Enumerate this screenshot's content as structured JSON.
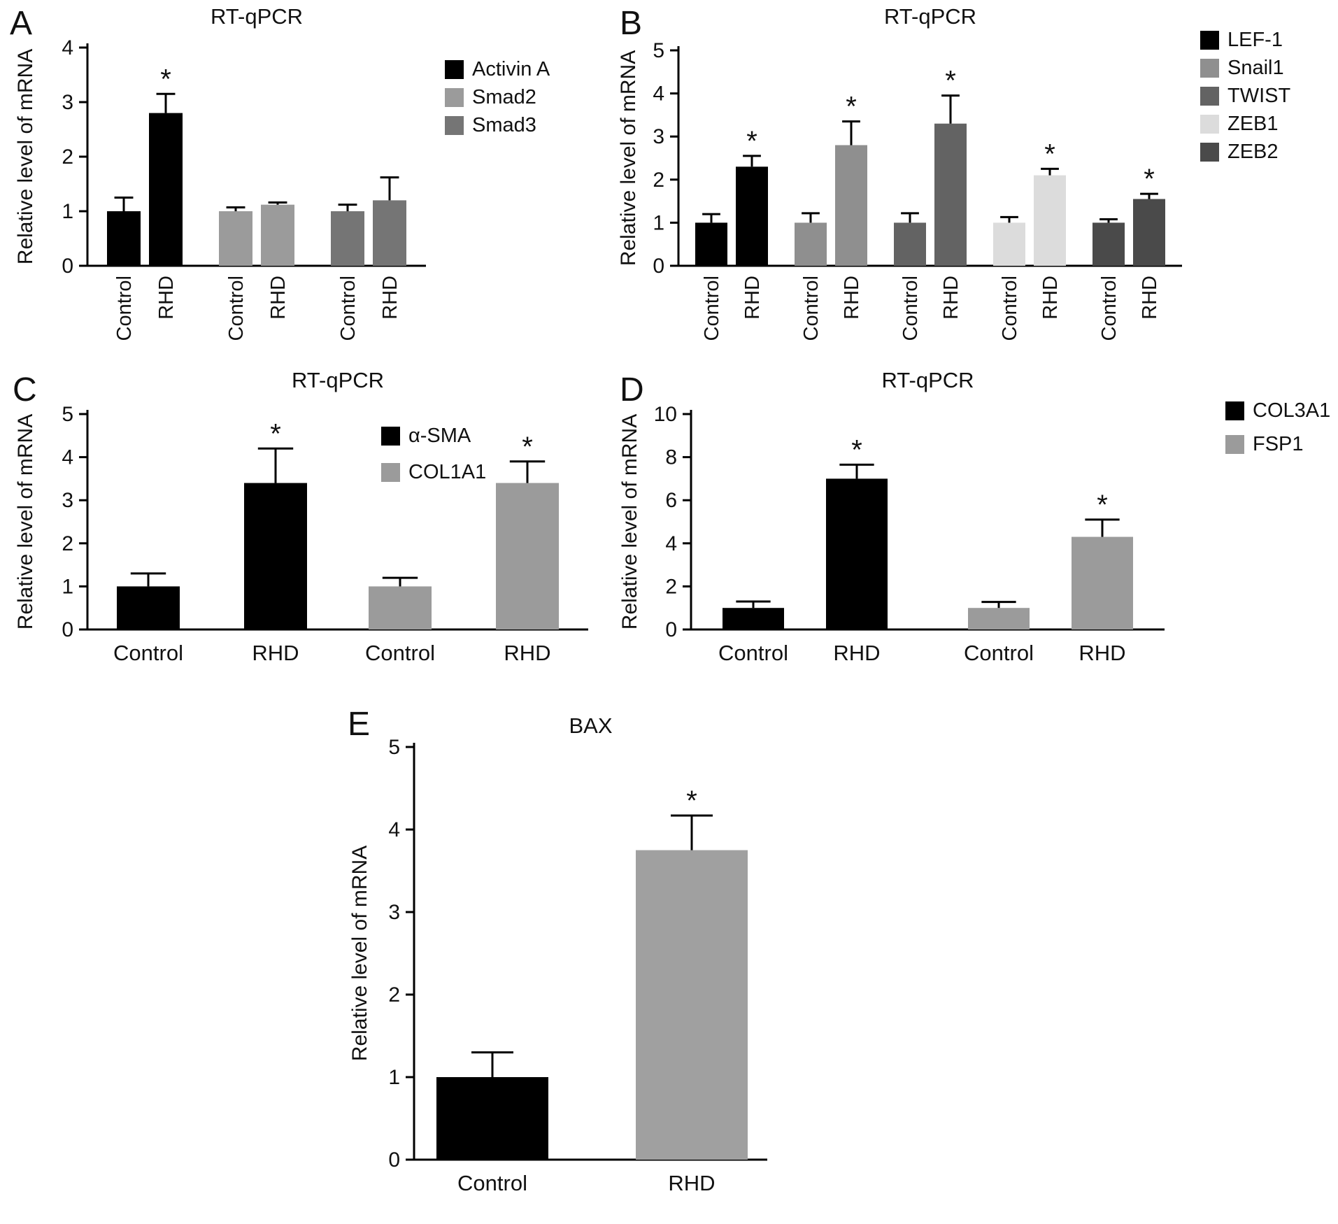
{
  "figure": {
    "background": "#ffffff",
    "bar_edge_color": "#000000",
    "significance_marker": "*"
  },
  "chart_data": [
    {
      "id": "A",
      "type": "bar",
      "panel_letter": "A",
      "title": "RT-qPCR",
      "ylabel": "Relative level of mRNA",
      "xlabel": "",
      "ylim": [
        0,
        4
      ],
      "yticks": [
        0,
        1,
        2,
        3,
        4
      ],
      "grid": false,
      "legend_position": "right",
      "legend": [
        {
          "label": "Activin A",
          "color": "#000000"
        },
        {
          "label": "Smad2",
          "color": "#9b9b9b"
        },
        {
          "label": "Smad3",
          "color": "#757575"
        }
      ],
      "groups": [
        {
          "name": "Activin A",
          "color": "#000000",
          "bars": [
            {
              "label": "Control",
              "value": 1.0,
              "error": 0.25,
              "sig": false
            },
            {
              "label": "RHD",
              "value": 2.8,
              "error": 0.35,
              "sig": true
            }
          ]
        },
        {
          "name": "Smad2",
          "color": "#9b9b9b",
          "bars": [
            {
              "label": "Control",
              "value": 1.0,
              "error": 0.07,
              "sig": false
            },
            {
              "label": "RHD",
              "value": 1.12,
              "error": 0.04,
              "sig": false
            }
          ]
        },
        {
          "name": "Smad3",
          "color": "#757575",
          "bars": [
            {
              "label": "Control",
              "value": 1.0,
              "error": 0.12,
              "sig": false
            },
            {
              "label": "RHD",
              "value": 1.2,
              "error": 0.42,
              "sig": false
            }
          ]
        }
      ]
    },
    {
      "id": "B",
      "type": "bar",
      "panel_letter": "B",
      "title": "RT-qPCR",
      "ylabel": "Relative level of mRNA",
      "xlabel": "",
      "ylim": [
        0,
        5
      ],
      "yticks": [
        0,
        1,
        2,
        3,
        4,
        5
      ],
      "grid": false,
      "legend_position": "right",
      "legend": [
        {
          "label": "LEF-1",
          "color": "#000000"
        },
        {
          "label": "Snail1",
          "color": "#8f8f8f"
        },
        {
          "label": "TWIST",
          "color": "#636363"
        },
        {
          "label": "ZEB1",
          "color": "#dcdcdc"
        },
        {
          "label": "ZEB2",
          "color": "#4a4a4a"
        }
      ],
      "groups": [
        {
          "name": "LEF-1",
          "color": "#000000",
          "bars": [
            {
              "label": "Control",
              "value": 1.0,
              "error": 0.2,
              "sig": false
            },
            {
              "label": "RHD",
              "value": 2.3,
              "error": 0.25,
              "sig": true
            }
          ]
        },
        {
          "name": "Snail1",
          "color": "#8f8f8f",
          "bars": [
            {
              "label": "Control",
              "value": 1.0,
              "error": 0.22,
              "sig": false
            },
            {
              "label": "RHD",
              "value": 2.8,
              "error": 0.55,
              "sig": true
            }
          ]
        },
        {
          "name": "TWIST",
          "color": "#636363",
          "bars": [
            {
              "label": "Control",
              "value": 1.0,
              "error": 0.22,
              "sig": false
            },
            {
              "label": "RHD",
              "value": 3.3,
              "error": 0.65,
              "sig": true
            }
          ]
        },
        {
          "name": "ZEB1",
          "color": "#dcdcdc",
          "bars": [
            {
              "label": "Control",
              "value": 1.0,
              "error": 0.13,
              "sig": false
            },
            {
              "label": "RHD",
              "value": 2.1,
              "error": 0.15,
              "sig": true
            }
          ]
        },
        {
          "name": "ZEB2",
          "color": "#4a4a4a",
          "bars": [
            {
              "label": "Control",
              "value": 1.0,
              "error": 0.08,
              "sig": false
            },
            {
              "label": "RHD",
              "value": 1.55,
              "error": 0.12,
              "sig": true
            }
          ]
        }
      ]
    },
    {
      "id": "C",
      "type": "bar",
      "panel_letter": "C",
      "title": "RT-qPCR",
      "ylabel": "Relative level of mRNA",
      "xlabel": "",
      "ylim": [
        0,
        5
      ],
      "yticks": [
        0,
        1,
        2,
        3,
        4,
        5
      ],
      "grid": false,
      "legend_position": "top-right-inside",
      "legend": [
        {
          "label": "α-SMA",
          "color": "#000000"
        },
        {
          "label": "COL1A1",
          "color": "#9b9b9b"
        }
      ],
      "groups": [
        {
          "name": "α-SMA",
          "color": "#000000",
          "bars": [
            {
              "label": "Control",
              "value": 1.0,
              "error": 0.3,
              "sig": false
            },
            {
              "label": "RHD",
              "value": 3.4,
              "error": 0.8,
              "sig": true
            }
          ]
        },
        {
          "name": "COL1A1",
          "color": "#9b9b9b",
          "bars": [
            {
              "label": "Control",
              "value": 1.0,
              "error": 0.2,
              "sig": false
            },
            {
              "label": "RHD",
              "value": 3.4,
              "error": 0.5,
              "sig": true
            }
          ]
        }
      ]
    },
    {
      "id": "D",
      "type": "bar",
      "panel_letter": "D",
      "title": "RT-qPCR",
      "ylabel": "Relative level of mRNA",
      "xlabel": "",
      "ylim": [
        0,
        10
      ],
      "yticks": [
        0,
        2,
        4,
        6,
        8,
        10
      ],
      "grid": false,
      "legend_position": "right",
      "legend": [
        {
          "label": "COL3A1",
          "color": "#000000"
        },
        {
          "label": "FSP1",
          "color": "#9b9b9b"
        }
      ],
      "groups": [
        {
          "name": "COL3A1",
          "color": "#000000",
          "bars": [
            {
              "label": "Control",
              "value": 1.0,
              "error": 0.3,
              "sig": false
            },
            {
              "label": "RHD",
              "value": 7.0,
              "error": 0.65,
              "sig": true
            }
          ]
        },
        {
          "name": "FSP1",
          "color": "#9b9b9b",
          "bars": [
            {
              "label": "Control",
              "value": 1.0,
              "error": 0.28,
              "sig": false
            },
            {
              "label": "RHD",
              "value": 4.3,
              "error": 0.8,
              "sig": true
            }
          ]
        }
      ]
    },
    {
      "id": "E",
      "type": "bar",
      "panel_letter": "E",
      "title": "BAX",
      "ylabel": "Relative level of mRNA",
      "xlabel": "",
      "ylim": [
        0,
        5
      ],
      "yticks": [
        0,
        1,
        2,
        3,
        4,
        5
      ],
      "grid": false,
      "legend_position": "none",
      "legend": [],
      "groups": [
        {
          "name": "BAX",
          "color": "#000000",
          "bars": [
            {
              "label": "Control",
              "value": 1.0,
              "error": 0.3,
              "sig": false,
              "color": "#000000"
            },
            {
              "label": "RHD",
              "value": 3.75,
              "error": 0.42,
              "sig": true,
              "color": "#a0a0a0"
            }
          ]
        }
      ]
    }
  ]
}
